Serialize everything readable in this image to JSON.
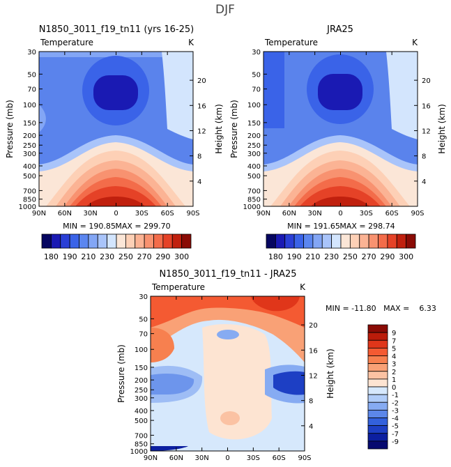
{
  "page_title": "DJF",
  "chart_data": [
    {
      "type": "heatmap",
      "title": "N1850_3011_f19_tn11 (yrs 16-25)",
      "subtitle_left": "Temperature",
      "subtitle_right": "K",
      "ylabel": "Pressure (mb)",
      "ylabel_right": "Height (km)",
      "x_ticks": [
        "90N",
        "60N",
        "30N",
        "0",
        "30S",
        "60S",
        "90S"
      ],
      "y_ticks": [
        "30",
        "50",
        "70",
        "100",
        "150",
        "200",
        "250",
        "300",
        "400",
        "500",
        "700",
        "850",
        "1000"
      ],
      "y_ticks_right": [
        "20",
        "16",
        "12",
        "8",
        "4"
      ],
      "min_label": "MIN = 190.85",
      "max_label": "MAX = 299.70",
      "colorbar_labels": [
        "180",
        "190",
        "210",
        "230",
        "250",
        "270",
        "290",
        "300"
      ]
    },
    {
      "type": "heatmap",
      "title": "JRA25",
      "subtitle_left": "Temperature",
      "subtitle_right": "K",
      "ylabel": "Pressure (mb)",
      "ylabel_right": "Height (km)",
      "x_ticks": [
        "90N",
        "60N",
        "30N",
        "0",
        "30S",
        "60S",
        "90S"
      ],
      "y_ticks": [
        "30",
        "50",
        "70",
        "100",
        "150",
        "200",
        "250",
        "300",
        "400",
        "500",
        "700",
        "850",
        "1000"
      ],
      "y_ticks_right": [
        "20",
        "16",
        "12",
        "8",
        "4"
      ],
      "min_label": "MIN = 191.65",
      "max_label": "MAX = 298.74",
      "colorbar_labels": [
        "180",
        "190",
        "210",
        "230",
        "250",
        "270",
        "290",
        "300"
      ]
    },
    {
      "type": "heatmap",
      "title": "N1850_3011_f19_tn11 - JRA25",
      "subtitle_left": "Temperature",
      "subtitle_right": "K",
      "ylabel": "Pressure (mb)",
      "ylabel_right": "Height (km)",
      "x_ticks": [
        "90N",
        "60N",
        "30N",
        "0",
        "30S",
        "60S",
        "90S"
      ],
      "y_ticks": [
        "30",
        "50",
        "70",
        "100",
        "150",
        "200",
        "250",
        "300",
        "400",
        "500",
        "700",
        "850",
        "1000"
      ],
      "y_ticks_right": [
        "20",
        "16",
        "12",
        "8",
        "4"
      ],
      "minmax_label": "MIN = -11.80   MAX =    6.33",
      "colorbar_labels": [
        "9",
        "7",
        "5",
        "4",
        "3",
        "2",
        "1",
        "0",
        "-1",
        "-2",
        "-3",
        "-4",
        "-5",
        "-7",
        "-9"
      ]
    }
  ],
  "colors": {
    "temp_scale": [
      "#060660",
      "#1a1ab3",
      "#2a3fd6",
      "#3a63e8",
      "#5b86f0",
      "#83a6f5",
      "#a9c4fa",
      "#d3e5fd",
      "#fbe6d7",
      "#fdd0b6",
      "#fbb394",
      "#f89270",
      "#f36c4a",
      "#e54227",
      "#c0200e",
      "#8a0b05"
    ],
    "diff_scale": [
      "#8a0b05",
      "#bb1c0a",
      "#e0361a",
      "#f45a32",
      "#f7804f",
      "#f9a176",
      "#fbc2a3",
      "#fde4d2",
      "#d6e8fc",
      "#b0ccf8",
      "#86abf2",
      "#5c87e9",
      "#3361dc",
      "#1d3fc4",
      "#0c1fa0",
      "#070a70"
    ]
  }
}
